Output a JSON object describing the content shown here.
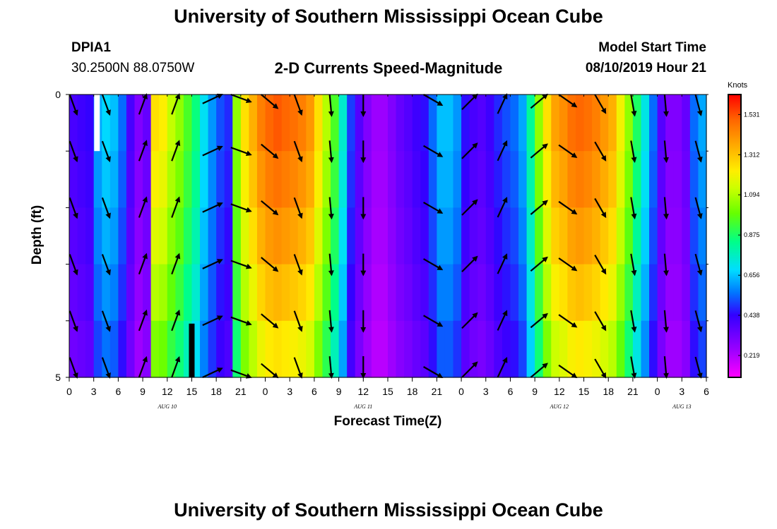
{
  "header": {
    "title": "University of Southern Mississippi Ocean Cube",
    "footer_title": "University of Southern Mississippi Ocean Cube",
    "station_id": "DPIA1",
    "station_coords": "30.2500N 88.0750W",
    "model_start_label": "Model Start Time",
    "model_start_value": "08/10/2019 Hour 21"
  },
  "chart_data": {
    "type": "heatmap",
    "title": "2-D Currents Speed-Magnitude",
    "xlabel": "Forecast Time(Z)",
    "ylabel": "Depth (ft)",
    "colorbar_label": "Knots",
    "colorbar_ticks": [
      "1.531",
      "1.312",
      "1.094",
      "0.875",
      "0.656",
      "0.438",
      "0.219"
    ],
    "colorbar_tick_values": [
      1.531,
      1.312,
      1.094,
      0.875,
      0.656,
      0.438,
      0.219
    ],
    "colorbar_range": [
      0.1,
      1.64
    ],
    "ylim": [
      0,
      5
    ],
    "y_tick_labels": [
      "0",
      "5"
    ],
    "y_tick_values": [
      0,
      5
    ],
    "x_range_hours": [
      0,
      78
    ],
    "x_tick_labels": [
      "0",
      "3",
      "6",
      "9",
      "12",
      "15",
      "18",
      "21",
      "0",
      "3",
      "6",
      "9",
      "12",
      "15",
      "18",
      "21",
      "0",
      "3",
      "6",
      "9",
      "12",
      "15",
      "18",
      "21",
      "0",
      "3",
      "6"
    ],
    "date_labels": [
      {
        "label": "AUG 10",
        "hour": 12
      },
      {
        "label": "AUG 11",
        "hour": 36
      },
      {
        "label": "AUG 12",
        "hour": 60
      },
      {
        "label": "AUG 13",
        "hour": 75
      }
    ],
    "depth_layers": 5,
    "speed_by_hour": [
      0.4,
      0.42,
      0.44,
      0.62,
      0.68,
      0.65,
      0.55,
      0.4,
      0.3,
      0.35,
      1.25,
      1.22,
      1.12,
      1.05,
      0.95,
      0.85,
      0.7,
      0.6,
      0.52,
      0.48,
      1.05,
      1.25,
      1.35,
      1.45,
      1.5,
      1.52,
      1.5,
      1.48,
      1.45,
      1.4,
      1.25,
      1.1,
      0.95,
      0.75,
      0.5,
      0.38,
      0.3,
      0.25,
      0.25,
      0.3,
      0.35,
      0.38,
      0.42,
      0.45,
      0.55,
      0.65,
      0.65,
      0.6,
      0.45,
      0.4,
      0.38,
      0.42,
      0.48,
      0.52,
      0.55,
      0.62,
      0.82,
      1.05,
      1.25,
      1.38,
      1.42,
      1.48,
      1.5,
      1.48,
      1.45,
      1.4,
      1.35,
      1.2,
      1.05,
      0.88,
      0.72,
      0.55,
      0.38,
      0.3,
      0.3,
      0.35,
      0.55,
      0.62
    ],
    "depth_factors": [
      1.0,
      0.97,
      0.93,
      0.88,
      0.82
    ],
    "missing_cells": [
      {
        "hour": 3.4,
        "layer": 0,
        "kind": "white"
      },
      {
        "hour": 15.0,
        "layer": 4,
        "kind": "black"
      }
    ],
    "arrow_hours": [
      0.5,
      4.5,
      9,
      13,
      17.5,
      21,
      24.5,
      28,
      32,
      36,
      44.5,
      49,
      53,
      57.5,
      61,
      65,
      69,
      73,
      77
    ],
    "arrow_dir_deg": [
      160,
      160,
      20,
      20,
      65,
      110,
      130,
      160,
      175,
      180,
      120,
      45,
      25,
      50,
      125,
      150,
      170,
      175,
      165
    ]
  }
}
